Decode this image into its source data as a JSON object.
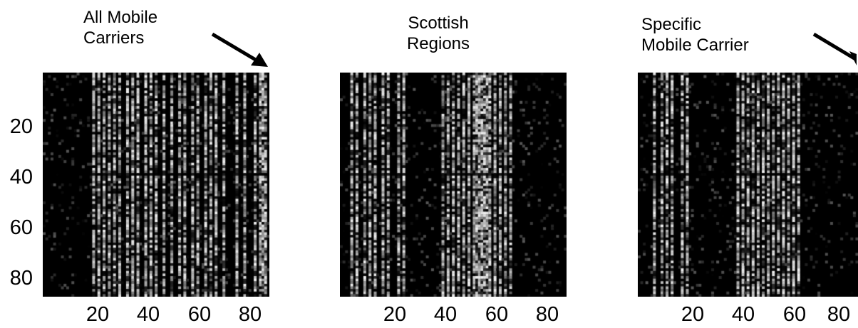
{
  "chart_data": [
    {
      "type": "heatmap",
      "title": "All Mobile\nCarriers",
      "annotation": "arrow",
      "xticks": [
        20,
        40,
        60,
        80
      ],
      "yticks": [
        20,
        40,
        60,
        80
      ],
      "xlim": [
        1,
        87
      ],
      "ylim": [
        1,
        87
      ],
      "colormap": "gray",
      "bright_columns": [
        20,
        22,
        24,
        26,
        28,
        30,
        33,
        35,
        37,
        40,
        42,
        44,
        47,
        50,
        53,
        55,
        58,
        60,
        63,
        65,
        67,
        70,
        75,
        78,
        82,
        84,
        85,
        86
      ],
      "dark_row": 40
    },
    {
      "type": "heatmap",
      "title": "Scottish\nRegions",
      "xticks": [
        20,
        40,
        60,
        80
      ],
      "yticks": [],
      "xlim": [
        1,
        87
      ],
      "ylim": [
        1,
        87
      ],
      "colormap": "gray",
      "bright_columns": [
        5,
        7,
        10,
        12,
        14,
        17,
        19,
        23,
        25,
        40,
        42,
        44,
        46,
        48,
        50,
        52,
        53,
        54,
        55,
        56,
        57,
        58,
        60,
        62,
        64,
        66
      ],
      "dark_row": 40
    },
    {
      "type": "heatmap",
      "title": "Specific\nMobile Carrier",
      "annotation": "arrow",
      "xticks": [
        20,
        40,
        60,
        80
      ],
      "yticks": [],
      "xlim": [
        1,
        87
      ],
      "ylim": [
        1,
        87
      ],
      "colormap": "gray",
      "bright_columns": [
        7,
        10,
        12,
        14,
        18,
        20,
        40,
        42,
        44,
        46,
        48,
        50,
        52,
        54,
        56,
        58,
        60,
        62,
        64
      ],
      "dark_row": 40
    }
  ]
}
